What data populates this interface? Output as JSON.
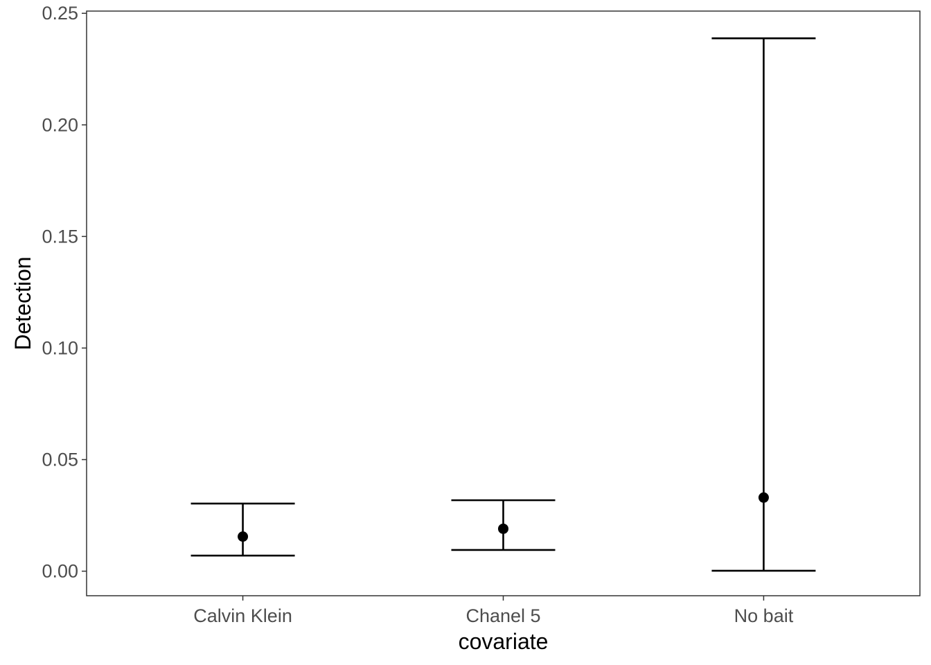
{
  "chart_data": {
    "type": "scatter",
    "subtype": "point-with-errorbars",
    "title": "",
    "xlabel": "covariate",
    "ylabel": "Detection",
    "categories": [
      "Calvin Klein",
      "Chanel 5",
      "No bait"
    ],
    "series": [
      {
        "values": [
          0.0155,
          0.019,
          0.033
        ],
        "lower": [
          0.007,
          0.0095,
          0.0002
        ],
        "upper": [
          0.0303,
          0.0318,
          0.2388
        ]
      }
    ],
    "ylim": [
      -0.011,
      0.251
    ],
    "yticks": [
      0.0,
      0.05,
      0.1,
      0.15,
      0.2,
      0.25
    ],
    "ytick_labels": [
      "0.00",
      "0.05",
      "0.10",
      "0.15",
      "0.20",
      "0.25"
    ],
    "grid": false,
    "legend": "none",
    "colors": {
      "mark": "#000000",
      "panel_border": "#333333",
      "tick_text": "#4d4d4d"
    }
  }
}
